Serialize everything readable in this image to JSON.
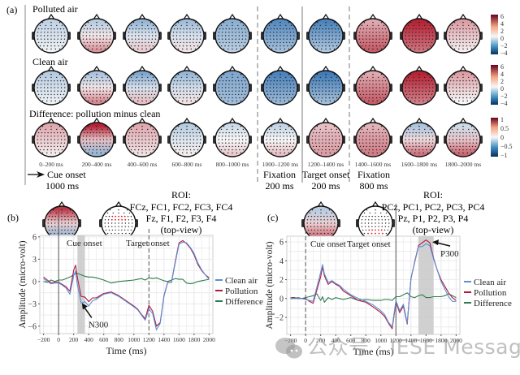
{
  "figure": {
    "panel_a": {
      "label": "(a)",
      "rows": [
        {
          "title": "Polluted air",
          "colorbar": {
            "ticks": [
              "6",
              "4",
              "2",
              "0",
              "−2",
              "−4"
            ],
            "range": [
              -5,
              6
            ]
          }
        },
        {
          "title": "Clean air",
          "colorbar": {
            "ticks": [
              "6",
              "4",
              "2",
              "0",
              "−2",
              "−4"
            ],
            "range": [
              -5,
              6
            ]
          }
        },
        {
          "title": "Difference: pollution minus clean",
          "colorbar": {
            "ticks": [
              "1",
              "0.5",
              "0",
              "−0.5",
              "−1"
            ],
            "range": [
              -1,
              1
            ]
          }
        }
      ],
      "time_windows": [
        "0–200 ms",
        "200–400 ms",
        "400–600 ms",
        "600–800 ms",
        "800–1000 ms",
        "1000–1200 ms",
        "1200–1400 ms",
        "1400–1600 ms",
        "1600–1800 ms",
        "1800–2000 ms"
      ],
      "phases": [
        {
          "name": "Cue onset",
          "duration": "1000 ms",
          "arrow": true
        },
        {
          "name": "Fixation",
          "duration": "200 ms"
        },
        {
          "name": "Target onset",
          "duration": "200 ms"
        },
        {
          "name": "Fixation",
          "duration": "800 ms"
        }
      ]
    },
    "colorscale": {
      "negative": "#2166ac",
      "neutral": "#f7f7f7",
      "positive": "#b2182b"
    }
  },
  "chart_data": [
    {
      "type": "heatmap",
      "title": "Scalp topographies (topoplot), panel (a)",
      "description": "Qualitative dominant pattern per head map (region: sign, relative intensity 0-1)",
      "rows": [
        "Polluted air",
        "Clean air",
        "Difference: pollution minus clean"
      ],
      "columns": [
        "0–200 ms",
        "200–400 ms",
        "400–600 ms",
        "600–800 ms",
        "800–1000 ms",
        "1000–1200 ms",
        "1200–1400 ms",
        "1400–1600 ms",
        "1600–1800 ms",
        "1800–2000 ms"
      ],
      "values": [
        [
          {
            "front": -0.25,
            "back": -0.05
          },
          {
            "front": -0.3,
            "back": 0.45
          },
          {
            "front": -0.45,
            "back": 0.2
          },
          {
            "front": -0.4,
            "back": 0.1
          },
          {
            "front": -0.5,
            "back": -0.3
          },
          {
            "front": -0.75,
            "back": -0.4
          },
          {
            "front": -0.8,
            "back": -0.35
          },
          {
            "front": 0.35,
            "back": 0.7
          },
          {
            "front": 0.95,
            "back": 0.6
          },
          {
            "front": 0.4,
            "back": 0.05
          }
        ],
        [
          {
            "front": -0.3,
            "back": -0.05
          },
          {
            "front": -0.35,
            "back": 0.5
          },
          {
            "front": -0.55,
            "back": 0.25
          },
          {
            "front": -0.45,
            "back": 0.1
          },
          {
            "front": -0.55,
            "back": -0.4
          },
          {
            "front": -0.8,
            "back": -0.45
          },
          {
            "front": -0.85,
            "back": -0.4
          },
          {
            "front": 0.35,
            "back": 0.7
          },
          {
            "front": 0.95,
            "back": 0.55
          },
          {
            "front": 0.4,
            "back": 0.0
          }
        ],
        [
          {
            "front": 0.35,
            "back": 0.05
          },
          {
            "front": 0.95,
            "back": -0.45
          },
          {
            "front": 0.35,
            "back": 0.1
          },
          {
            "front": -0.3,
            "back": 0.05
          },
          {
            "front": -0.2,
            "back": 0.2
          },
          {
            "front": -0.25,
            "back": 0.25
          },
          {
            "front": 0.25,
            "back": 0.4
          },
          {
            "front": 0.3,
            "back": 0.55
          },
          {
            "front": -0.35,
            "back": 0.6
          },
          {
            "front": -0.2,
            "back": 0.65
          }
        ]
      ],
      "colorbar_ranges": [
        [
          -5,
          6
        ],
        [
          -5,
          6
        ],
        [
          -1,
          1
        ]
      ]
    },
    {
      "type": "line",
      "panel": "(b)",
      "roi_title": "ROI:",
      "roi_lines": [
        "FCz, FC1, FC2, FC3, FC4",
        "Fz, F1, F2, F3, F4",
        "(top-view)"
      ],
      "xlabel": "Time (ms)",
      "ylabel": "Amplitude (micro-volt)",
      "xlim": [
        -250,
        2050
      ],
      "ylim": [
        -7,
        6.2
      ],
      "xticks": [
        -200,
        0,
        200,
        400,
        600,
        800,
        1000,
        1200,
        1400,
        1600,
        1800,
        2000
      ],
      "xtick_labels": [
        "−200",
        "0",
        "200",
        "400",
        "600",
        "800",
        "1000",
        "1200",
        "1400",
        "1600",
        "1800",
        "2000"
      ],
      "yticks": [
        -6,
        -3,
        0,
        3,
        6
      ],
      "ytick_labels": [
        "−6",
        "−3",
        "0",
        "3",
        "6"
      ],
      "grid": true,
      "legend": "right",
      "annotations": [
        {
          "text": "Cue onset",
          "x": 0,
          "line": "solid"
        },
        {
          "text": "Target onset",
          "x": 1200,
          "line": "dashed"
        },
        {
          "text": "N300",
          "x": 310,
          "y": -2.9,
          "arrow": true
        }
      ],
      "shaded_window": [
        250,
        350
      ],
      "x": [
        -200,
        -150,
        -100,
        -50,
        0,
        50,
        100,
        150,
        200,
        225,
        250,
        300,
        350,
        400,
        450,
        500,
        600,
        700,
        800,
        900,
        1000,
        1050,
        1100,
        1150,
        1200,
        1250,
        1300,
        1350,
        1400,
        1450,
        1500,
        1550,
        1600,
        1650,
        1700,
        1750,
        1800,
        1850,
        1900,
        1950,
        2000
      ],
      "series": [
        {
          "name": "Clean air",
          "color": "#5b8fd4",
          "values": [
            0.4,
            0.0,
            -0.3,
            -0.2,
            -0.2,
            -0.5,
            -0.9,
            -1.7,
            0.8,
            1.4,
            -0.5,
            -2.9,
            -2.7,
            -3.3,
            -2.6,
            -2.4,
            -1.7,
            -1.5,
            -2.0,
            -2.7,
            -3.4,
            -3.8,
            -4.5,
            -5.2,
            -3.7,
            -4.3,
            -6.5,
            -5.6,
            -2.0,
            -0.1,
            -0.1,
            2.5,
            5.0,
            5.3,
            5.2,
            4.6,
            3.8,
            2.5,
            1.6,
            0.9,
            0.3
          ]
        },
        {
          "name": "Pollution",
          "color": "#b2183f",
          "values": [
            0.6,
            0.2,
            -0.2,
            -0.1,
            -0.1,
            -0.4,
            -0.7,
            -1.3,
            1.5,
            2.2,
            0.5,
            -2.0,
            -2.1,
            -2.7,
            -2.2,
            -2.2,
            -1.6,
            -1.4,
            -1.9,
            -2.6,
            -3.3,
            -3.7,
            -4.4,
            -5.0,
            -3.2,
            -4.0,
            -6.0,
            -5.5,
            -1.9,
            -0.1,
            -0.1,
            2.7,
            5.2,
            5.5,
            5.1,
            4.5,
            3.6,
            2.3,
            1.5,
            0.9,
            0.5
          ]
        },
        {
          "name": "Difference",
          "color": "#2e7d4f",
          "values": [
            0.0,
            -0.1,
            0.2,
            0.0,
            0.2,
            0.2,
            0.4,
            0.6,
            0.9,
            1.1,
            1.1,
            0.9,
            0.7,
            0.6,
            0.6,
            0.5,
            0.2,
            -0.2,
            0.0,
            0.1,
            0.2,
            0.3,
            0.4,
            0.2,
            0.5,
            0.4,
            0.5,
            0.3,
            0.1,
            0.0,
            0.2,
            0.4,
            0.3,
            0.3,
            -0.2,
            -0.3,
            -0.2,
            0.0,
            0.1,
            0.2,
            0.3
          ]
        }
      ]
    },
    {
      "type": "line",
      "panel": "(c)",
      "roi_title": "ROI:",
      "roi_lines": [
        "PCz, PC1, PC2, PC3, PC4",
        "Pz, P1, P2, P3, P4",
        "(top-view)"
      ],
      "xlabel": "Time (ms)",
      "ylabel": "Amplitude (micro-volt)",
      "xlim": [
        -250,
        2050
      ],
      "ylim": [
        -3.8,
        6.6
      ],
      "xticks": [
        -200,
        0,
        200,
        400,
        600,
        800,
        1000,
        1200,
        1400,
        1600,
        1800,
        2000
      ],
      "xtick_labels": [
        "−200",
        "0",
        "200",
        "400",
        "600",
        "800",
        "1000",
        "1200",
        "1400",
        "1600",
        "1800",
        "2000"
      ],
      "yticks": [
        -2,
        0,
        2,
        4,
        6
      ],
      "ytick_labels": [
        "−2",
        "0",
        "2",
        "4",
        "6"
      ],
      "grid": true,
      "legend": "right",
      "annotations": [
        {
          "text": "Cue onset",
          "x": 0,
          "line": "dashed"
        },
        {
          "text": "Target onset",
          "x": 1200,
          "line": "solid"
        },
        {
          "text": "P300",
          "x": 1640,
          "y": 5.9,
          "arrow": true
        }
      ],
      "shaded_window": [
        1500,
        1700
      ],
      "x": [
        -200,
        -150,
        -100,
        -50,
        0,
        50,
        100,
        150,
        200,
        225,
        250,
        300,
        350,
        400,
        450,
        500,
        600,
        700,
        800,
        900,
        1000,
        1050,
        1100,
        1150,
        1200,
        1250,
        1300,
        1350,
        1400,
        1450,
        1500,
        1550,
        1600,
        1650,
        1700,
        1750,
        1800,
        1850,
        1900,
        1950,
        2000
      ],
      "series": [
        {
          "name": "Clean air",
          "color": "#5b8fd4",
          "values": [
            0.1,
            0.0,
            0.0,
            0.0,
            -0.1,
            -0.2,
            -0.3,
            1.2,
            2.8,
            3.6,
            2.6,
            1.7,
            1.9,
            1.6,
            1.4,
            1.0,
            0.4,
            0.0,
            -0.3,
            -0.7,
            -1.3,
            -1.7,
            -2.5,
            -3.0,
            -0.2,
            -1.3,
            -0.6,
            -2.6,
            2.2,
            3.8,
            5.5,
            5.5,
            5.8,
            5.6,
            4.2,
            3.0,
            1.8,
            1.0,
            0.2,
            -0.3,
            -0.3
          ]
        },
        {
          "name": "Pollution",
          "color": "#b2183f",
          "values": [
            0.1,
            0.1,
            0.0,
            0.0,
            0.0,
            -0.3,
            -0.5,
            0.9,
            2.3,
            3.4,
            2.4,
            1.5,
            1.8,
            1.5,
            1.3,
            0.8,
            0.3,
            -0.2,
            -0.4,
            -0.9,
            -1.5,
            -1.9,
            -2.6,
            -3.2,
            -0.4,
            -1.5,
            -0.8,
            -2.7,
            2.1,
            3.9,
            5.6,
            5.9,
            6.2,
            5.9,
            4.3,
            3.0,
            2.0,
            1.3,
            0.6,
            0.1,
            -0.2
          ]
        },
        {
          "name": "Difference",
          "color": "#2e7d4f",
          "values": [
            0.0,
            0.0,
            0.1,
            0.0,
            0.1,
            0.2,
            0.3,
            0.5,
            -0.2,
            0.2,
            -0.4,
            0.1,
            -0.1,
            0.1,
            0.0,
            -0.1,
            0.1,
            -0.2,
            -0.1,
            -0.2,
            -0.2,
            -0.1,
            -0.1,
            -0.2,
            0.2,
            0.2,
            0.4,
            0.6,
            0.2,
            0.1,
            0.3,
            0.4,
            0.1,
            0.1,
            0.2,
            0.2,
            0.2,
            0.3,
            0.5,
            0.3,
            0.1
          ]
        }
      ]
    }
  ],
  "panel_b": {
    "label": "(b)"
  },
  "panel_c": {
    "label": "(c)"
  },
  "watermark": {
    "text": "公众号 · IESE Message"
  }
}
